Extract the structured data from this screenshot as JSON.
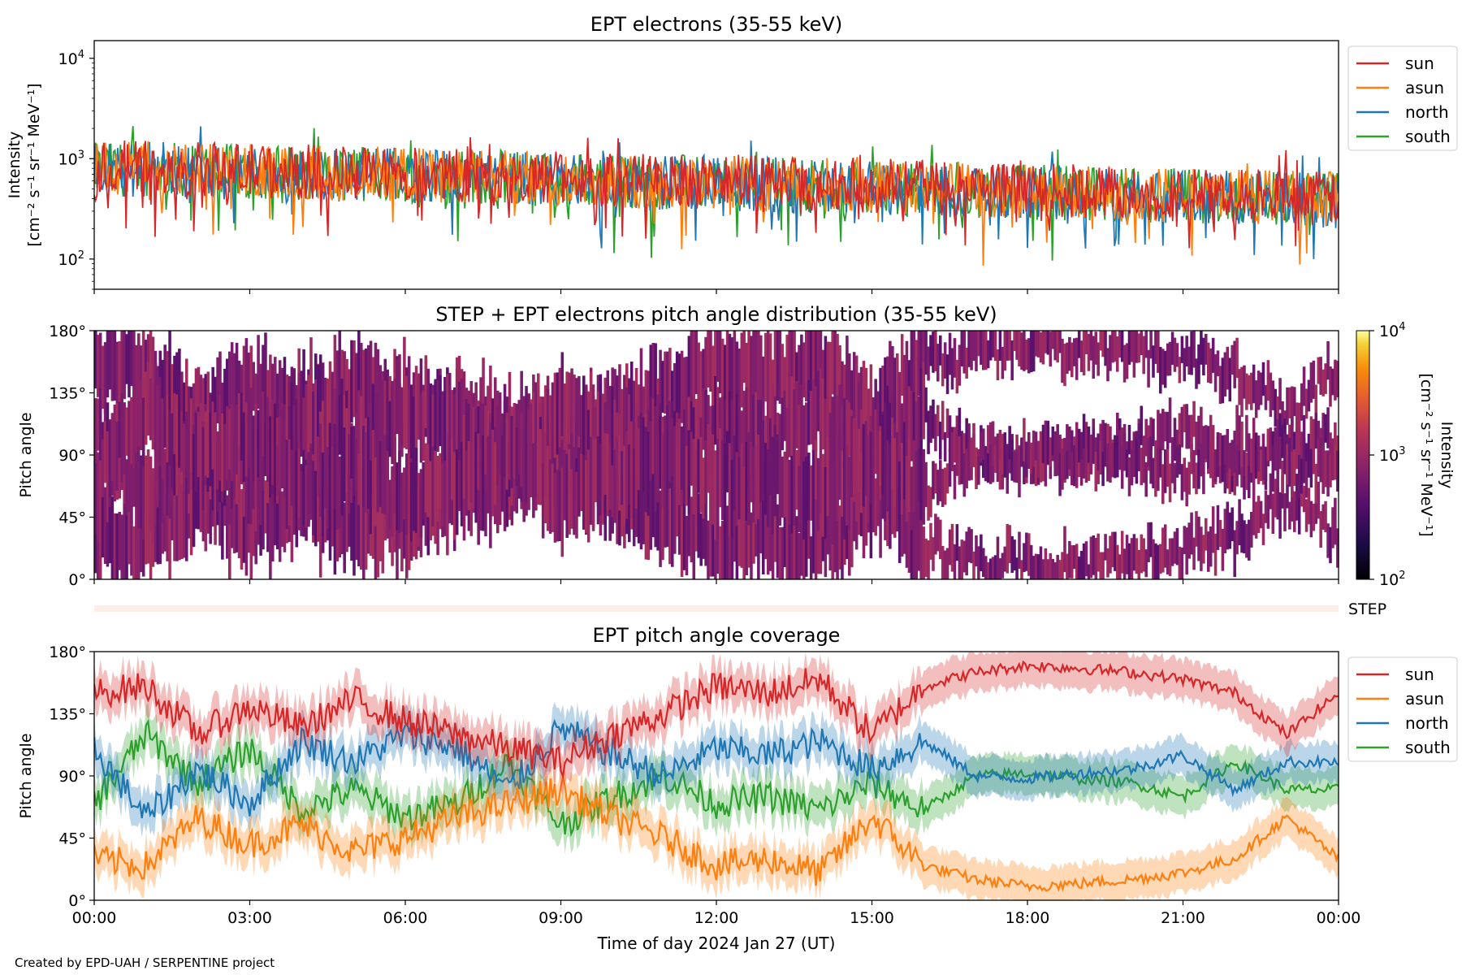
{
  "colors": {
    "sun": "#d62728",
    "asun": "#ff7f0e",
    "north": "#1f77b4",
    "south": "#2ca02c",
    "step_band": "#fdeee6"
  },
  "x_axis": {
    "label": "Time of day 2024 Jan 27 (UT)",
    "ticks": [
      "00:00",
      "03:00",
      "06:00",
      "09:00",
      "12:00",
      "15:00",
      "18:00",
      "21:00",
      "00:00"
    ],
    "range_hours": [
      0,
      24
    ]
  },
  "credit": "Created by EPD-UAH / SERPENTINE project",
  "chart_data": [
    {
      "type": "line",
      "title": "EPT electrons (35-55 keV)",
      "ylabel_line1": "Intensity",
      "ylabel_line2": "[cm⁻² s⁻¹ sr⁻¹ MeV⁻¹]",
      "yscale": "log",
      "ylim": [
        50,
        15000
      ],
      "y_ticks": [
        {
          "value": 100,
          "base": "10",
          "exp": "2"
        },
        {
          "value": 1000,
          "base": "10",
          "exp": "3"
        },
        {
          "value": 10000,
          "base": "10",
          "exp": "4"
        }
      ],
      "legend_position": "outside-right",
      "x_hours": [
        0,
        1,
        2,
        3,
        4,
        5,
        6,
        7,
        8,
        9,
        10,
        11,
        12,
        13,
        14,
        15,
        16,
        17,
        18,
        19,
        20,
        21,
        22,
        23,
        24
      ],
      "series": [
        {
          "name": "sun",
          "values": [
            800,
            820,
            780,
            760,
            740,
            720,
            700,
            680,
            660,
            640,
            620,
            600,
            590,
            570,
            560,
            540,
            520,
            500,
            480,
            470,
            450,
            440,
            430,
            420,
            400
          ]
        },
        {
          "name": "asun",
          "values": [
            780,
            800,
            770,
            750,
            730,
            710,
            690,
            670,
            650,
            630,
            610,
            590,
            580,
            560,
            550,
            530,
            510,
            490,
            470,
            460,
            440,
            430,
            420,
            410,
            390
          ]
        },
        {
          "name": "north",
          "values": [
            760,
            790,
            760,
            740,
            720,
            700,
            680,
            660,
            640,
            620,
            600,
            580,
            570,
            550,
            540,
            520,
            500,
            480,
            460,
            450,
            430,
            420,
            410,
            400,
            380
          ]
        },
        {
          "name": "south",
          "values": [
            770,
            795,
            765,
            745,
            725,
            705,
            685,
            665,
            645,
            625,
            605,
            585,
            575,
            555,
            545,
            525,
            505,
            485,
            465,
            455,
            435,
            425,
            415,
            405,
            385
          ]
        }
      ]
    },
    {
      "type": "heatmap",
      "title": "STEP + EPT electrons pitch angle distribution (35-55 keV)",
      "ylabel": "Pitch angle",
      "y_ticks": [
        "0°",
        "45°",
        "90°",
        "135°",
        "180°"
      ],
      "ylim": [
        0,
        180
      ],
      "colorbar": {
        "label_line1": "Intensity",
        "label_line2": "[cm⁻² s⁻¹ sr⁻¹ MeV⁻¹]",
        "scale": "log",
        "range": [
          100,
          10000
        ],
        "ticks": [
          {
            "value": 100,
            "base": "10",
            "exp": "2"
          },
          {
            "value": 1000,
            "base": "10",
            "exp": "3"
          },
          {
            "value": 10000,
            "base": "10",
            "exp": "4"
          }
        ],
        "colormap": "inferno"
      },
      "step_label": "STEP"
    },
    {
      "type": "line",
      "title": "EPT pitch angle coverage",
      "ylabel": "Pitch angle",
      "y_ticks": [
        "0°",
        "45°",
        "90°",
        "135°",
        "180°"
      ],
      "ylim": [
        0,
        180
      ],
      "legend_position": "outside-right",
      "x_hours": [
        0,
        1,
        2,
        3,
        4,
        5,
        6,
        7,
        8,
        9,
        10,
        11,
        12,
        13,
        14,
        15,
        16,
        17,
        18,
        19,
        20,
        21,
        22,
        23,
        24
      ],
      "series": [
        {
          "name": "sun",
          "values": [
            150,
            155,
            120,
            140,
            125,
            145,
            130,
            120,
            110,
            100,
            120,
            135,
            155,
            150,
            160,
            120,
            155,
            165,
            170,
            168,
            165,
            160,
            150,
            120,
            150
          ]
        },
        {
          "name": "asun",
          "values": [
            30,
            25,
            60,
            40,
            55,
            35,
            45,
            60,
            70,
            80,
            60,
            45,
            25,
            30,
            20,
            60,
            25,
            15,
            10,
            12,
            15,
            20,
            30,
            60,
            30
          ]
        },
        {
          "name": "north",
          "values": [
            110,
            60,
            95,
            70,
            115,
            100,
            120,
            110,
            80,
            125,
            105,
            90,
            110,
            105,
            115,
            95,
            115,
            90,
            88,
            92,
            95,
            105,
            80,
            100,
            100
          ]
        },
        {
          "name": "south",
          "values": [
            70,
            120,
            85,
            110,
            65,
            80,
            60,
            70,
            100,
            55,
            75,
            90,
            70,
            75,
            65,
            85,
            65,
            90,
            92,
            88,
            85,
            75,
            100,
            80,
            80
          ]
        }
      ]
    }
  ]
}
